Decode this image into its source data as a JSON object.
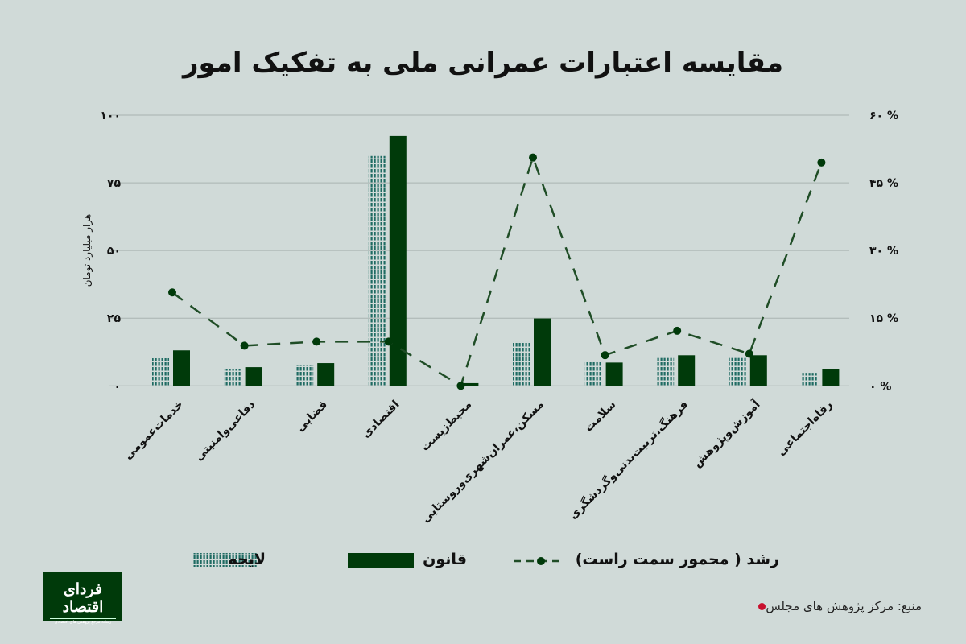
{
  "chart_data": {
    "type": "bar",
    "title": "مقایسه اعتبارات عمرانی ملی به تفکیک امور",
    "ylabel": "هزار میلیارد تومان",
    "ylim": [
      0,
      100
    ],
    "yticks": [
      "۰",
      "۲۵",
      "۵۰",
      "۷۵",
      "۱۰۰"
    ],
    "y2lim": [
      0,
      60
    ],
    "y2ticks": [
      "۰ %",
      "۱۵ %",
      "۳۰ %",
      "۴۵ %",
      "۶۰ %"
    ],
    "grid": true,
    "legend_position": "bottom",
    "categories": [
      "خدمات‌عمومی",
      "دفاعی‌وامنیتی",
      "قضایی",
      "اقتصادی",
      "محیط‌زیست",
      "مسکن،عمران‌شهری‌وروستایی",
      "سلامت",
      "فرهنگ،تربیت‌بدنی‌وگردشگری",
      "آموزش‌وپژوهش",
      "رفاه‌اجتماعی"
    ],
    "series": [
      {
        "name": "لایحه",
        "kind": "bar",
        "pattern": "dashed-teal",
        "color": "#1e6b62",
        "values": [
          10.2,
          6.2,
          7.7,
          84.9,
          0,
          16.3,
          9.0,
          10.3,
          10.3,
          4.8
        ]
      },
      {
        "name": "قانون",
        "kind": "bar",
        "color": "#003a0a",
        "values": [
          13.1,
          6.9,
          8.4,
          92.3,
          1.0,
          24.9,
          8.6,
          11.3,
          11.3,
          6.1
        ]
      },
      {
        "name": "رشد ( محمور سمت راست)",
        "kind": "line",
        "axis": "right",
        "unit": "%",
        "color": "#1f4d26",
        "values": [
          20.7,
          8.9,
          9.8,
          9.8,
          0,
          50.6,
          6.8,
          12.2,
          7.1,
          49.5
        ]
      }
    ]
  },
  "logo": {
    "name": "فردای اقتصاد",
    "tagline": "رسانه مرجع پژوهش های اقتصادی"
  },
  "source": "منبع: مرکز پژوهش های مجلس",
  "colors": {
    "background": "#d0dad8",
    "qanun": "#003a0a",
    "layeh": "#1e6b62",
    "source_dot": "#c8102e"
  }
}
